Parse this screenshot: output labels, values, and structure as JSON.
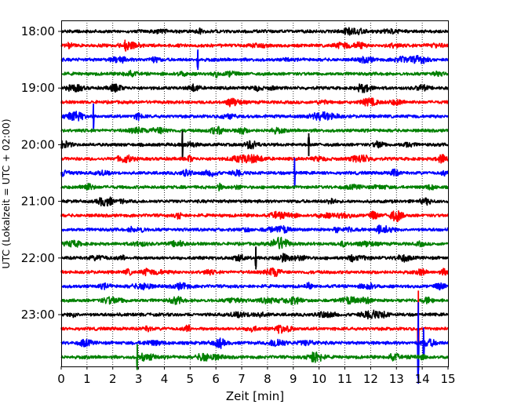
{
  "chart_data": {
    "type": "line",
    "title": "",
    "xlabel": "Zeit  [min]",
    "ylabel": "UTC (Lokalzeit = UTC + 02:00)",
    "xlim": [
      0,
      15
    ],
    "x_ticks": [
      "0",
      "1",
      "2",
      "3",
      "4",
      "5",
      "6",
      "7",
      "8",
      "9",
      "10",
      "11",
      "12",
      "13",
      "14",
      "15"
    ],
    "y_ticks": [
      "18:00",
      "19:00",
      "20:00",
      "21:00",
      "22:00",
      "23:00"
    ],
    "grid": "vertical-dotted",
    "colors": [
      "#000000",
      "#ff0000",
      "#0000ff",
      "#008000"
    ],
    "trace_interval_min": 15,
    "traces": [
      {
        "start": "18:00",
        "color": "#000000"
      },
      {
        "start": "18:15",
        "color": "#ff0000"
      },
      {
        "start": "18:30",
        "color": "#0000ff"
      },
      {
        "start": "18:45",
        "color": "#008000"
      },
      {
        "start": "19:00",
        "color": "#000000"
      },
      {
        "start": "19:15",
        "color": "#ff0000"
      },
      {
        "start": "19:30",
        "color": "#0000ff"
      },
      {
        "start": "19:45",
        "color": "#008000"
      },
      {
        "start": "20:00",
        "color": "#000000"
      },
      {
        "start": "20:15",
        "color": "#ff0000"
      },
      {
        "start": "20:30",
        "color": "#0000ff"
      },
      {
        "start": "20:45",
        "color": "#008000"
      },
      {
        "start": "21:00",
        "color": "#000000"
      },
      {
        "start": "21:15",
        "color": "#ff0000"
      },
      {
        "start": "21:30",
        "color": "#0000ff"
      },
      {
        "start": "21:45",
        "color": "#008000"
      },
      {
        "start": "22:00",
        "color": "#000000"
      },
      {
        "start": "22:15",
        "color": "#ff0000"
      },
      {
        "start": "22:30",
        "color": "#0000ff"
      },
      {
        "start": "22:45",
        "color": "#008000"
      },
      {
        "start": "23:00",
        "color": "#000000"
      },
      {
        "start": "23:15",
        "color": "#ff0000"
      },
      {
        "start": "23:30",
        "color": "#0000ff"
      },
      {
        "start": "23:45",
        "color": "#008000"
      }
    ],
    "events": [
      {
        "trace": "18:30",
        "t": 5.3,
        "amp": 0.8
      },
      {
        "trace": "19:30",
        "t": 1.25,
        "amp": 1.0
      },
      {
        "trace": "20:00",
        "t": 4.7,
        "amp": 1.1
      },
      {
        "trace": "20:00",
        "t": 9.6,
        "amp": 0.9
      },
      {
        "trace": "20:30",
        "t": 9.05,
        "amp": 1.2
      },
      {
        "trace": "22:00",
        "t": 7.55,
        "amp": 0.9
      },
      {
        "trace": "23:15",
        "t": 13.85,
        "amp": 3.0
      },
      {
        "trace": "23:30",
        "t": 13.85,
        "amp": 3.2
      },
      {
        "trace": "23:30",
        "t": 14.05,
        "amp": 1.2
      },
      {
        "trace": "23:45",
        "t": 2.95,
        "amp": 1.0
      }
    ]
  }
}
